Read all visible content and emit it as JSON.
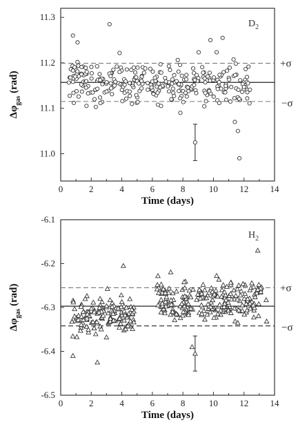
{
  "chart_data": [
    {
      "type": "scatter",
      "panel_label": "D",
      "panel_label_sub": "2",
      "marker": "circle",
      "xlabel": "Time (days)",
      "ylabel_main": "Δφ",
      "ylabel_sub": "gas",
      "ylabel_unit": " (rad)",
      "xlim": [
        0,
        14
      ],
      "ylim": [
        10.94,
        11.32
      ],
      "xticks": [
        0,
        2,
        4,
        6,
        8,
        10,
        12,
        14
      ],
      "yticks": [
        11.0,
        11.1,
        11.2,
        11.3
      ],
      "ytick_labels": [
        "11.0",
        "11.1",
        "11.2",
        "11.3"
      ],
      "mean": 11.157,
      "plus_sigma": 11.199,
      "minus_sigma": 11.115,
      "plus_sigma_label": "+σ",
      "minus_sigma_label": "−σ",
      "error_bar": {
        "x": 8.8,
        "y": 11.025,
        "low": 10.985,
        "high": 11.065
      },
      "outliers": [
        [
          0.8,
          11.26
        ],
        [
          1.1,
          11.245
        ],
        [
          3.2,
          11.285
        ],
        [
          11.7,
          10.99
        ],
        [
          11.6,
          11.05
        ],
        [
          11.4,
          11.07
        ],
        [
          10.6,
          11.255
        ],
        [
          9.8,
          11.25
        ]
      ],
      "cloud": {
        "x_start": 0.5,
        "x_end": 12.4,
        "n": 300,
        "spread": 0.045,
        "seed": 7
      }
    },
    {
      "type": "scatter",
      "panel_label": "H",
      "panel_label_sub": "2",
      "marker": "triangle",
      "xlabel": "Time (days)",
      "ylabel_main": "Δφ",
      "ylabel_sub": "gas",
      "ylabel_unit": " (rad)",
      "xlim": [
        0,
        14
      ],
      "ylim": [
        -6.5,
        -6.1
      ],
      "xticks": [
        0,
        2,
        4,
        6,
        8,
        10,
        12,
        14
      ],
      "yticks": [
        -6.1,
        -6.2,
        -6.3,
        -6.4,
        -6.5
      ],
      "ytick_labels": [
        "-6.1",
        "-6.2",
        "-6.3",
        "-6.4",
        "-6.5"
      ],
      "mean": -6.297,
      "plus_sigma": -6.255,
      "minus_sigma": -6.342,
      "plus_sigma_label": "+σ",
      "minus_sigma_label": "−σ",
      "error_bar": {
        "x": 8.8,
        "y": -6.405,
        "low": -6.445,
        "high": -6.365
      },
      "outliers": [
        [
          4.1,
          -6.205
        ],
        [
          12.9,
          -6.17
        ],
        [
          0.8,
          -6.41
        ],
        [
          2.4,
          -6.425
        ],
        [
          8.6,
          -6.39
        ]
      ],
      "cloud_segments": [
        {
          "x_start": 0.5,
          "x_end": 4.8,
          "n": 140,
          "spread": 0.04,
          "seed": 11,
          "center": -6.32
        },
        {
          "x_start": 6.3,
          "x_end": 13.5,
          "n": 230,
          "spread": 0.045,
          "seed": 23,
          "center": -6.285
        }
      ]
    }
  ]
}
